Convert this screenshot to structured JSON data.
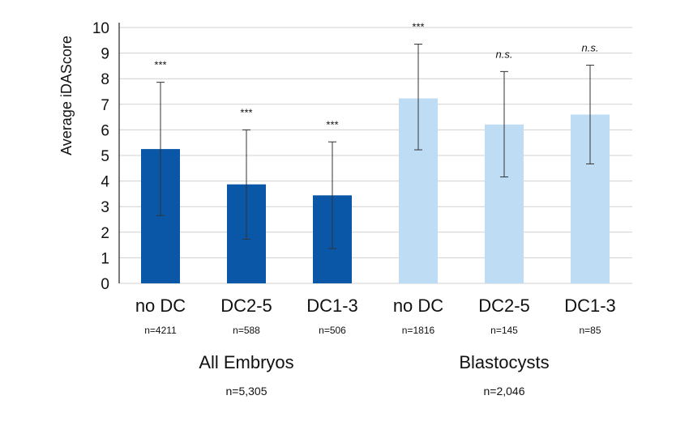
{
  "chart_data": {
    "type": "bar",
    "ylabel": "Average iDAScore",
    "ylim": [
      0,
      10
    ],
    "yticks": [
      0,
      1,
      2,
      3,
      4,
      5,
      6,
      7,
      8,
      9,
      10
    ],
    "grid": "horizontal",
    "categories": [
      "no DC",
      "DC2-5",
      "DC1-3",
      "no DC",
      "DC2-5",
      "DC1-3"
    ],
    "n_labels": [
      "n=4211",
      "n=588",
      "n=506",
      "n=1816",
      "n=145",
      "n=85"
    ],
    "values": [
      5.25,
      3.87,
      3.44,
      7.23,
      6.21,
      6.6
    ],
    "error_low": [
      2.65,
      1.72,
      1.36,
      5.22,
      4.16,
      4.67
    ],
    "error_high": [
      7.86,
      6.0,
      5.53,
      9.35,
      8.28,
      8.53
    ],
    "significance": [
      "***",
      "***",
      "***",
      "***",
      "n.s.",
      "n.s."
    ],
    "groups": [
      {
        "label": "All Embryos",
        "n_label": "n=5,305",
        "indices": [
          0,
          1,
          2
        ]
      },
      {
        "label": "Blastocysts",
        "n_label": "n=2,046",
        "indices": [
          3,
          4,
          5
        ]
      }
    ]
  },
  "colors": {
    "group_bars": [
      "#0a57a8",
      "#bfdcf5"
    ],
    "grid": "#d0d0d0",
    "axis": "#222222",
    "error_bar": "#333333"
  }
}
